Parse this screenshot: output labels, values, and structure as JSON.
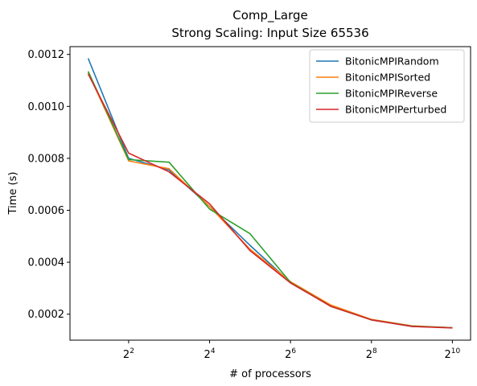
{
  "chart_data": {
    "type": "line",
    "title": "Comp_Large",
    "subtitle": "Strong Scaling: Input Size 65536",
    "xlabel": "# of processors",
    "ylabel": "Time (s)",
    "xscale": "log2",
    "x": [
      2,
      4,
      8,
      16,
      32,
      64,
      128,
      256,
      512,
      1024
    ],
    "xticks": [
      {
        "value": 4,
        "base": "2",
        "exp": "2"
      },
      {
        "value": 16,
        "base": "2",
        "exp": "4"
      },
      {
        "value": 64,
        "base": "2",
        "exp": "6"
      },
      {
        "value": 256,
        "base": "2",
        "exp": "8"
      },
      {
        "value": 1024,
        "base": "2",
        "exp": "10"
      }
    ],
    "ylim": [
      0.0001,
      0.00123
    ],
    "yticks": [
      {
        "value": 0.0002,
        "label": "0.0002"
      },
      {
        "value": 0.0004,
        "label": "0.0004"
      },
      {
        "value": 0.0006,
        "label": "0.0006"
      },
      {
        "value": 0.0008,
        "label": "0.0008"
      },
      {
        "value": 0.001,
        "label": "0.0010"
      },
      {
        "value": 0.0012,
        "label": "0.0012"
      }
    ],
    "grid": false,
    "legend_position": "top-right",
    "series": [
      {
        "name": "BitonicMPIRandom",
        "color": "#1f77b4",
        "values": [
          0.001185,
          0.0008,
          0.000755,
          0.000615,
          0.000465,
          0.000322,
          0.00023,
          0.000178,
          0.000153,
          0.000148
        ]
      },
      {
        "name": "BitonicMPISorted",
        "color": "#ff7f0e",
        "values": [
          0.00113,
          0.00079,
          0.00076,
          0.000615,
          0.00045,
          0.000325,
          0.000235,
          0.00018,
          0.000155,
          0.000148
        ]
      },
      {
        "name": "BitonicMPIReverse",
        "color": "#2ca02c",
        "values": [
          0.001135,
          0.000795,
          0.000785,
          0.000605,
          0.00051,
          0.000322,
          0.00023,
          0.000178,
          0.000154,
          0.000148
        ]
      },
      {
        "name": "BitonicMPIPerturbed",
        "color": "#d62728",
        "values": [
          0.001125,
          0.00082,
          0.000748,
          0.000625,
          0.000445,
          0.00032,
          0.00023,
          0.000178,
          0.000153,
          0.000147
        ]
      }
    ]
  }
}
